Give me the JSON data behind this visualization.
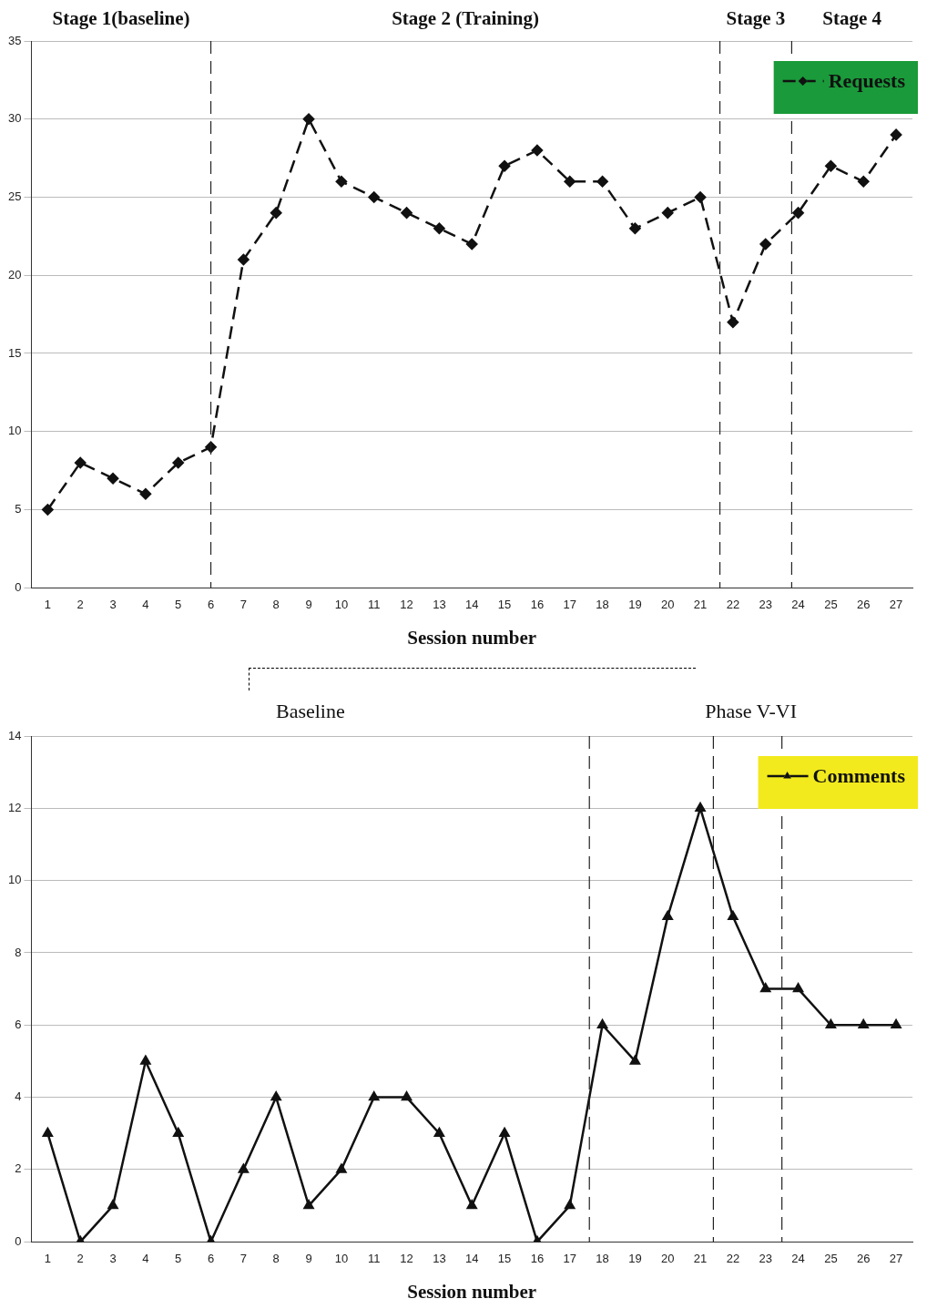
{
  "chart_data": [
    {
      "type": "line",
      "xlabel": "Session number",
      "x": [
        1,
        2,
        3,
        4,
        5,
        6,
        7,
        8,
        9,
        10,
        11,
        12,
        13,
        14,
        15,
        16,
        17,
        18,
        19,
        20,
        21,
        22,
        23,
        24,
        25,
        26,
        27
      ],
      "xlim": [
        0.5,
        27.5
      ],
      "xticks": [
        1,
        2,
        3,
        4,
        5,
        6,
        7,
        8,
        9,
        10,
        11,
        12,
        13,
        14,
        15,
        16,
        17,
        18,
        19,
        20,
        21,
        22,
        23,
        24,
        25,
        26,
        27
      ],
      "ylim": [
        0,
        35
      ],
      "yticks": [
        0,
        5,
        10,
        15,
        20,
        25,
        30,
        35
      ],
      "grid": "y",
      "legend": "top right",
      "marker": "diamond",
      "line_style": "dashed",
      "series": [
        {
          "name": "Requests",
          "color": "#111111",
          "values": [
            5,
            8,
            7,
            6,
            8,
            9,
            21,
            24,
            30,
            26,
            25,
            24,
            23,
            22,
            27,
            28,
            26,
            26,
            23,
            24,
            25,
            17,
            22,
            24,
            27,
            26,
            29
          ]
        }
      ],
      "ref_lines": [
        {
          "axis": "x",
          "value": 6
        },
        {
          "axis": "x",
          "value": 21.6
        },
        {
          "axis": "x",
          "value": 23.8
        }
      ],
      "annotations": [
        "Stage 1(baseline)",
        "Stage 2 (Training)",
        "Stage 3",
        "Stage 4"
      ]
    },
    {
      "type": "line",
      "xlabel": "Session number",
      "x": [
        1,
        2,
        3,
        4,
        5,
        6,
        7,
        8,
        9,
        10,
        11,
        12,
        13,
        14,
        15,
        16,
        17,
        18,
        19,
        20,
        21,
        22,
        23,
        24,
        25,
        26,
        27
      ],
      "xlim": [
        0.5,
        27.5
      ],
      "xticks": [
        1,
        2,
        3,
        4,
        5,
        6,
        7,
        8,
        9,
        10,
        11,
        12,
        13,
        14,
        15,
        16,
        17,
        18,
        19,
        20,
        21,
        22,
        23,
        24,
        25,
        26,
        27
      ],
      "ylim": [
        0,
        14
      ],
      "yticks": [
        0,
        2,
        4,
        6,
        8,
        10,
        12,
        14
      ],
      "grid": "y",
      "legend": "top right",
      "marker": "triangle",
      "line_style": "solid",
      "series": [
        {
          "name": "Comments",
          "color": "#111111",
          "values": [
            3,
            0,
            1,
            5,
            3,
            0,
            2,
            4,
            1,
            2,
            4,
            4,
            3,
            1,
            3,
            0,
            1,
            6,
            5,
            9,
            12,
            9,
            7,
            7,
            6,
            6,
            6
          ]
        }
      ],
      "ref_lines": [
        {
          "axis": "x",
          "value": 17.6
        },
        {
          "axis": "x",
          "value": 21.4
        },
        {
          "axis": "x",
          "value": 23.5
        }
      ],
      "annotations": [
        "Baseline",
        "Phase V-VI"
      ]
    }
  ]
}
